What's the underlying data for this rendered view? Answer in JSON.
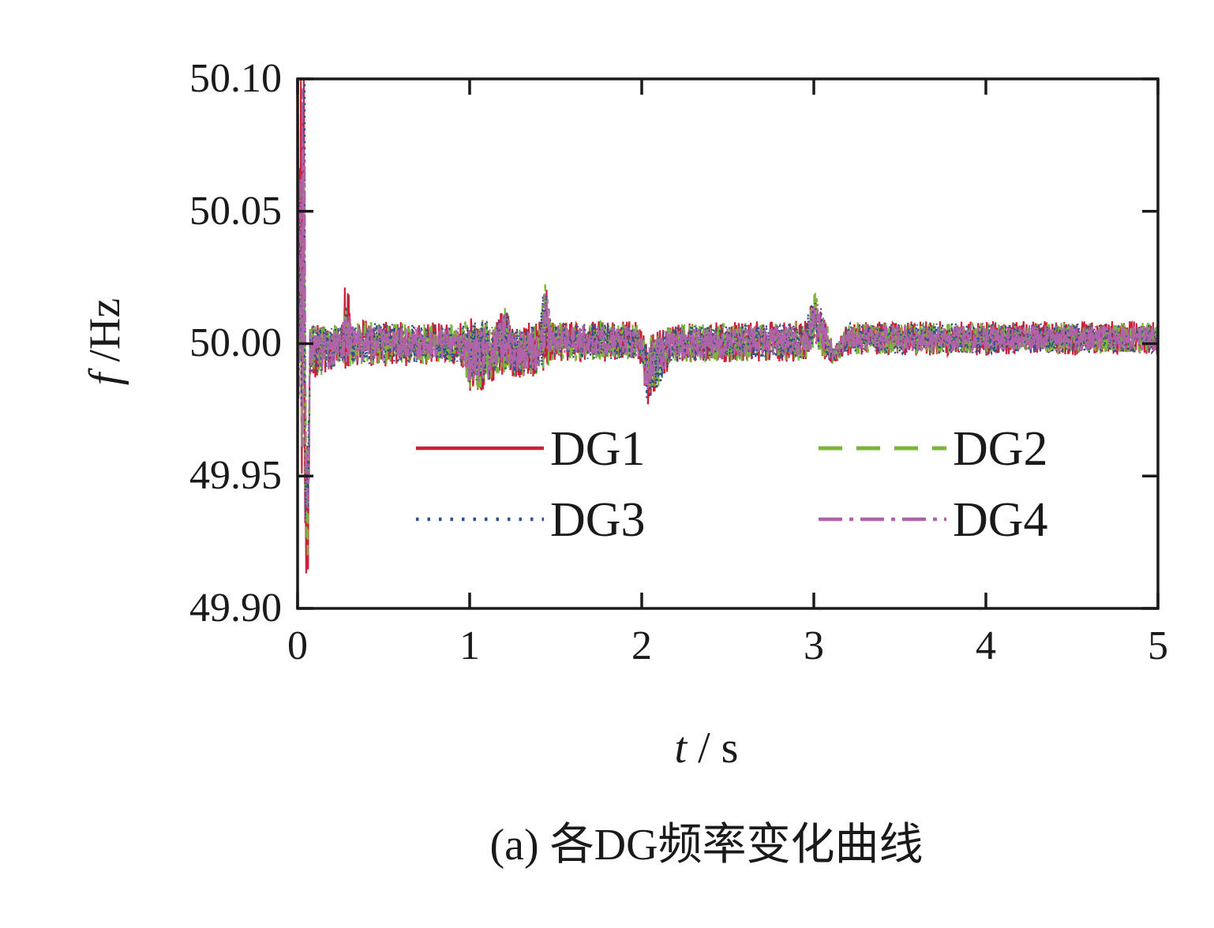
{
  "figure": {
    "caption": "(a) 各DG频率变化曲线"
  },
  "labels": {
    "y_var": "f",
    "y_unit": " /Hz",
    "x_var": "t",
    "x_unit": " / s"
  },
  "chart_data": {
    "type": "line",
    "title": "",
    "xlabel": "t / s",
    "ylabel": "f /Hz",
    "xlim": [
      0,
      5
    ],
    "ylim": [
      49.9,
      50.1
    ],
    "xticks": [
      0,
      1,
      2,
      3,
      4,
      5
    ],
    "xtick_labels": [
      "0",
      "1",
      "2",
      "3",
      "4",
      "5"
    ],
    "yticks": [
      50.1,
      50.05,
      50.0,
      49.95,
      49.9
    ],
    "ytick_labels": [
      "50.10",
      "50.05",
      "50.00",
      "49.95",
      "49.90"
    ],
    "grid": false,
    "legend_position": "inside lower-center, 2 columns",
    "axis_color": "#1a1a1a",
    "series": [
      {
        "name": "DG1",
        "color": "#c82138",
        "line_style": "solid",
        "amp_scale": 1.3,
        "seed": 101
      },
      {
        "name": "DG2",
        "color": "#7db53c",
        "line_style": "dashed",
        "amp_scale": 1.22,
        "seed": 202
      },
      {
        "name": "DG3",
        "color": "#33508e",
        "line_style": "dotted",
        "amp_scale": 1.15,
        "seed": 303
      },
      {
        "name": "DG4",
        "color": "#b163aa",
        "line_style": "dashdot",
        "amp_scale": 1.0,
        "seed": 404
      }
    ],
    "envelope_keyframes": [
      [
        0.0,
        50.03,
        0.072
      ],
      [
        0.042,
        50.03,
        0.072
      ],
      [
        0.047,
        49.95,
        0.03
      ],
      [
        0.062,
        49.94,
        0.022
      ],
      [
        0.072,
        49.998,
        0.008
      ],
      [
        0.16,
        49.997,
        0.008
      ],
      [
        0.26,
        50.0,
        0.006
      ],
      [
        0.278,
        50.006,
        0.014
      ],
      [
        0.295,
        50.006,
        0.014
      ],
      [
        0.31,
        50.0,
        0.007
      ],
      [
        0.94,
        50.0,
        0.006
      ],
      [
        1.0,
        49.996,
        0.011
      ],
      [
        1.09,
        49.996,
        0.011
      ],
      [
        1.16,
        49.998,
        0.008
      ],
      [
        1.205,
        50.002,
        0.011
      ],
      [
        1.25,
        49.997,
        0.008
      ],
      [
        1.4,
        49.998,
        0.008
      ],
      [
        1.425,
        50.007,
        0.014
      ],
      [
        1.45,
        50.007,
        0.014
      ],
      [
        1.47,
        50.001,
        0.006
      ],
      [
        1.98,
        50.001,
        0.006
      ],
      [
        2.005,
        49.997,
        0.005
      ],
      [
        2.03,
        49.989,
        0.01
      ],
      [
        2.1,
        49.994,
        0.009
      ],
      [
        2.17,
        50.0,
        0.006
      ],
      [
        2.95,
        50.001,
        0.006
      ],
      [
        3.005,
        50.009,
        0.009
      ],
      [
        3.06,
        50.003,
        0.007
      ],
      [
        3.11,
        49.996,
        0.003
      ],
      [
        3.15,
        49.998,
        0.003
      ],
      [
        3.2,
        50.002,
        0.005
      ],
      [
        5.0,
        50.002,
        0.005
      ]
    ]
  }
}
